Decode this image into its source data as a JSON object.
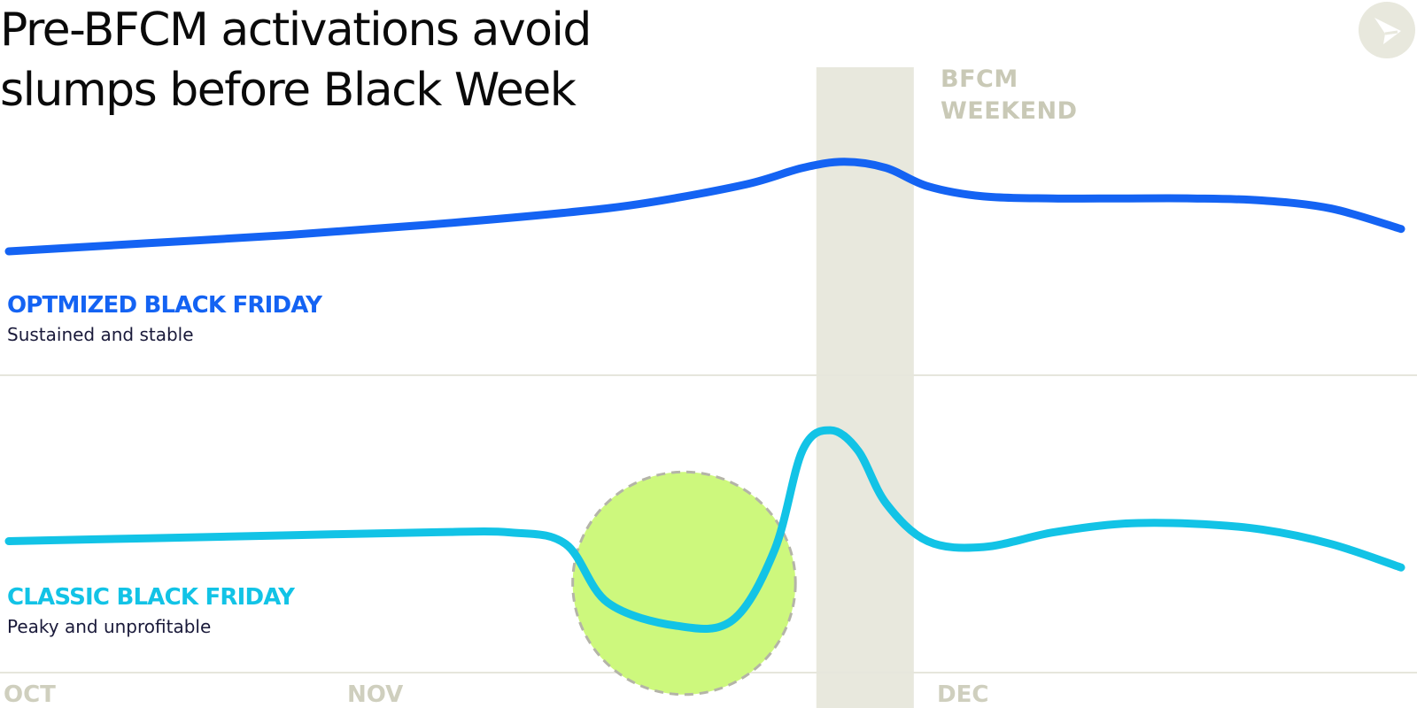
{
  "title": {
    "line1": "Pre-BFCM activations avoid",
    "line2": "slumps before Black Week"
  },
  "band_label": {
    "line1": "BFCM",
    "line2": "WEEKEND"
  },
  "colors": {
    "optimized": "#1463f3",
    "classic": "#12c3e6",
    "band": "#e8e8dd",
    "highlight": "#cdf87d",
    "gridline": "#e6e6dc"
  },
  "chart_data": {
    "type": "line",
    "title": "Pre-BFCM activations avoid slumps before Black Week",
    "xlabel": "",
    "ylabel": "",
    "grid": false,
    "x_ticks": [
      "OCT",
      "NOV",
      "DEC"
    ],
    "highlight_band": {
      "label": "BFCM WEEKEND",
      "start": 0.58,
      "end": 0.65
    },
    "highlight_circle": {
      "series": "CLASSIC BLACK FRIDAY",
      "center_x": 0.485,
      "radius": 0.08
    },
    "series": [
      {
        "name": "OPTMIZED BLACK FRIDAY",
        "description": "Sustained and stable",
        "x": [
          0.0,
          0.1,
          0.2,
          0.3,
          0.4,
          0.46,
          0.53,
          0.57,
          0.6,
          0.63,
          0.66,
          0.7,
          0.75,
          0.8,
          0.85,
          0.9,
          0.95,
          1.0
        ],
        "values": [
          0.2,
          0.24,
          0.28,
          0.33,
          0.39,
          0.44,
          0.53,
          0.61,
          0.64,
          0.61,
          0.52,
          0.47,
          0.46,
          0.46,
          0.46,
          0.45,
          0.41,
          0.31
        ]
      },
      {
        "name": "CLASSIC BLACK FRIDAY",
        "description": "Peaky and unprofitable",
        "x": [
          0.0,
          0.1,
          0.2,
          0.3,
          0.36,
          0.4,
          0.43,
          0.48,
          0.52,
          0.55,
          0.57,
          0.59,
          0.61,
          0.63,
          0.66,
          0.7,
          0.75,
          0.8,
          0.85,
          0.9,
          0.95,
          1.0
        ],
        "values": [
          0.45,
          0.46,
          0.47,
          0.48,
          0.48,
          0.44,
          0.24,
          0.16,
          0.18,
          0.42,
          0.76,
          0.83,
          0.76,
          0.58,
          0.45,
          0.43,
          0.48,
          0.51,
          0.51,
          0.49,
          0.44,
          0.36
        ]
      }
    ]
  }
}
